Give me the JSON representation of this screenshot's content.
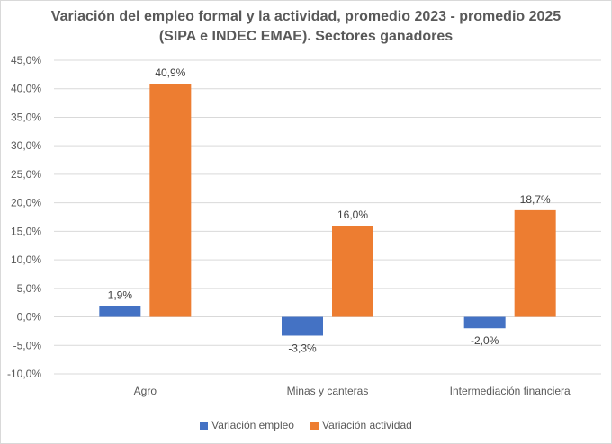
{
  "chart_data": {
    "type": "bar",
    "title": "Variación del empleo formal y la actividad, promedio 2023 - promedio 2025 (SIPA e INDEC EMAE). Sectores ganadores",
    "categories": [
      "Agro",
      "Minas y canteras",
      "Intermediación financiera"
    ],
    "series": [
      {
        "name": "Variación empleo",
        "values": [
          1.9,
          -3.3,
          -2.0
        ],
        "labels": [
          "1,9%",
          "-3,3%",
          "-2,0%"
        ],
        "color": "#4472C4"
      },
      {
        "name": "Variación actividad",
        "values": [
          40.9,
          16.0,
          18.7
        ],
        "labels": [
          "40,9%",
          "16,0%",
          "18,7%"
        ],
        "color": "#ED7D31"
      }
    ],
    "ylim": [
      -10,
      45
    ],
    "yticks": [
      -10,
      -5,
      0,
      5,
      10,
      15,
      20,
      25,
      30,
      35,
      40,
      45
    ],
    "ytick_labels": [
      "-10,0%",
      "-5,0%",
      "0,0%",
      "5,0%",
      "10,0%",
      "15,0%",
      "20,0%",
      "25,0%",
      "30,0%",
      "35,0%",
      "40,0%",
      "45,0%"
    ],
    "grid": true,
    "legend": "bottom",
    "xlabel": "",
    "ylabel": ""
  }
}
